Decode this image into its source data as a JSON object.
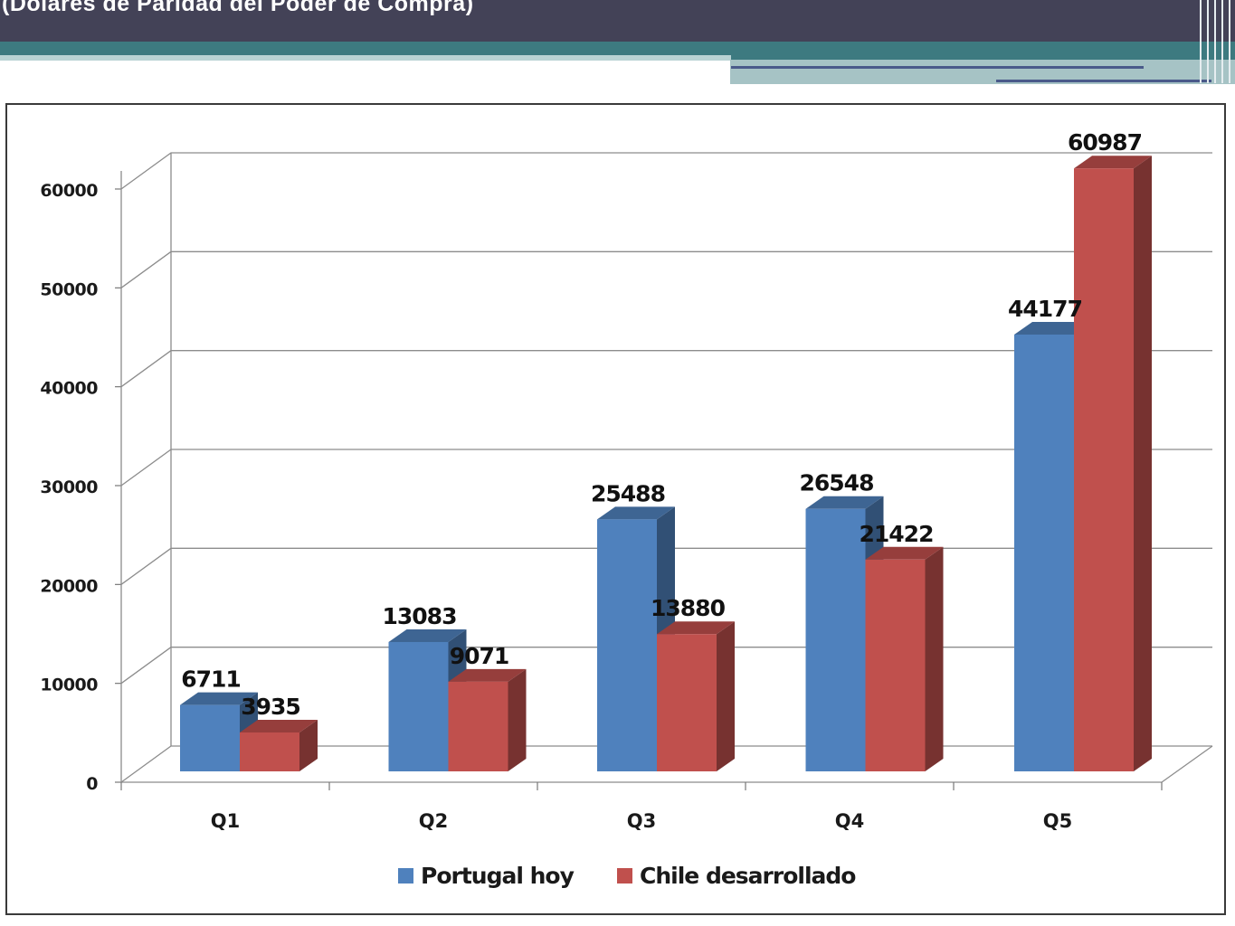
{
  "header": {
    "title": "(Dólares de Paridad del Poder de Compra)"
  },
  "colors": {
    "header_band": "#434257",
    "teal_band": "#3d7a80",
    "series_1": "#4f81bd",
    "series_2": "#c0504d"
  },
  "legend": {
    "items": [
      {
        "label": "Portugal hoy",
        "color": "#4f81bd"
      },
      {
        "label": "Chile desarrollado",
        "color": "#c0504d"
      }
    ]
  },
  "chart_data": {
    "type": "bar",
    "style": "3d-clustered-column",
    "title": "",
    "xlabel": "",
    "ylabel": "",
    "categories": [
      "Q1",
      "Q2",
      "Q3",
      "Q4",
      "Q5"
    ],
    "series": [
      {
        "name": "Portugal hoy",
        "values": [
          6711,
          13083,
          25488,
          26548,
          44177
        ],
        "color": "#4f81bd"
      },
      {
        "name": "Chile desarrollado",
        "values": [
          3935,
          9071,
          13880,
          21422,
          60987
        ],
        "color": "#c0504d"
      }
    ],
    "data_labels": [
      [
        "6711",
        "13083",
        "25488",
        "26548",
        "44177"
      ],
      [
        "3935",
        "9071",
        "13880",
        "21422",
        "60987"
      ]
    ],
    "ylim": [
      0,
      60000
    ],
    "yticks": [
      0,
      10000,
      20000,
      30000,
      40000,
      50000,
      60000
    ],
    "ytick_labels": [
      "0",
      "10000",
      "20000",
      "30000",
      "40000",
      "50000",
      "60000"
    ],
    "grid": true,
    "legend_position": "bottom"
  }
}
